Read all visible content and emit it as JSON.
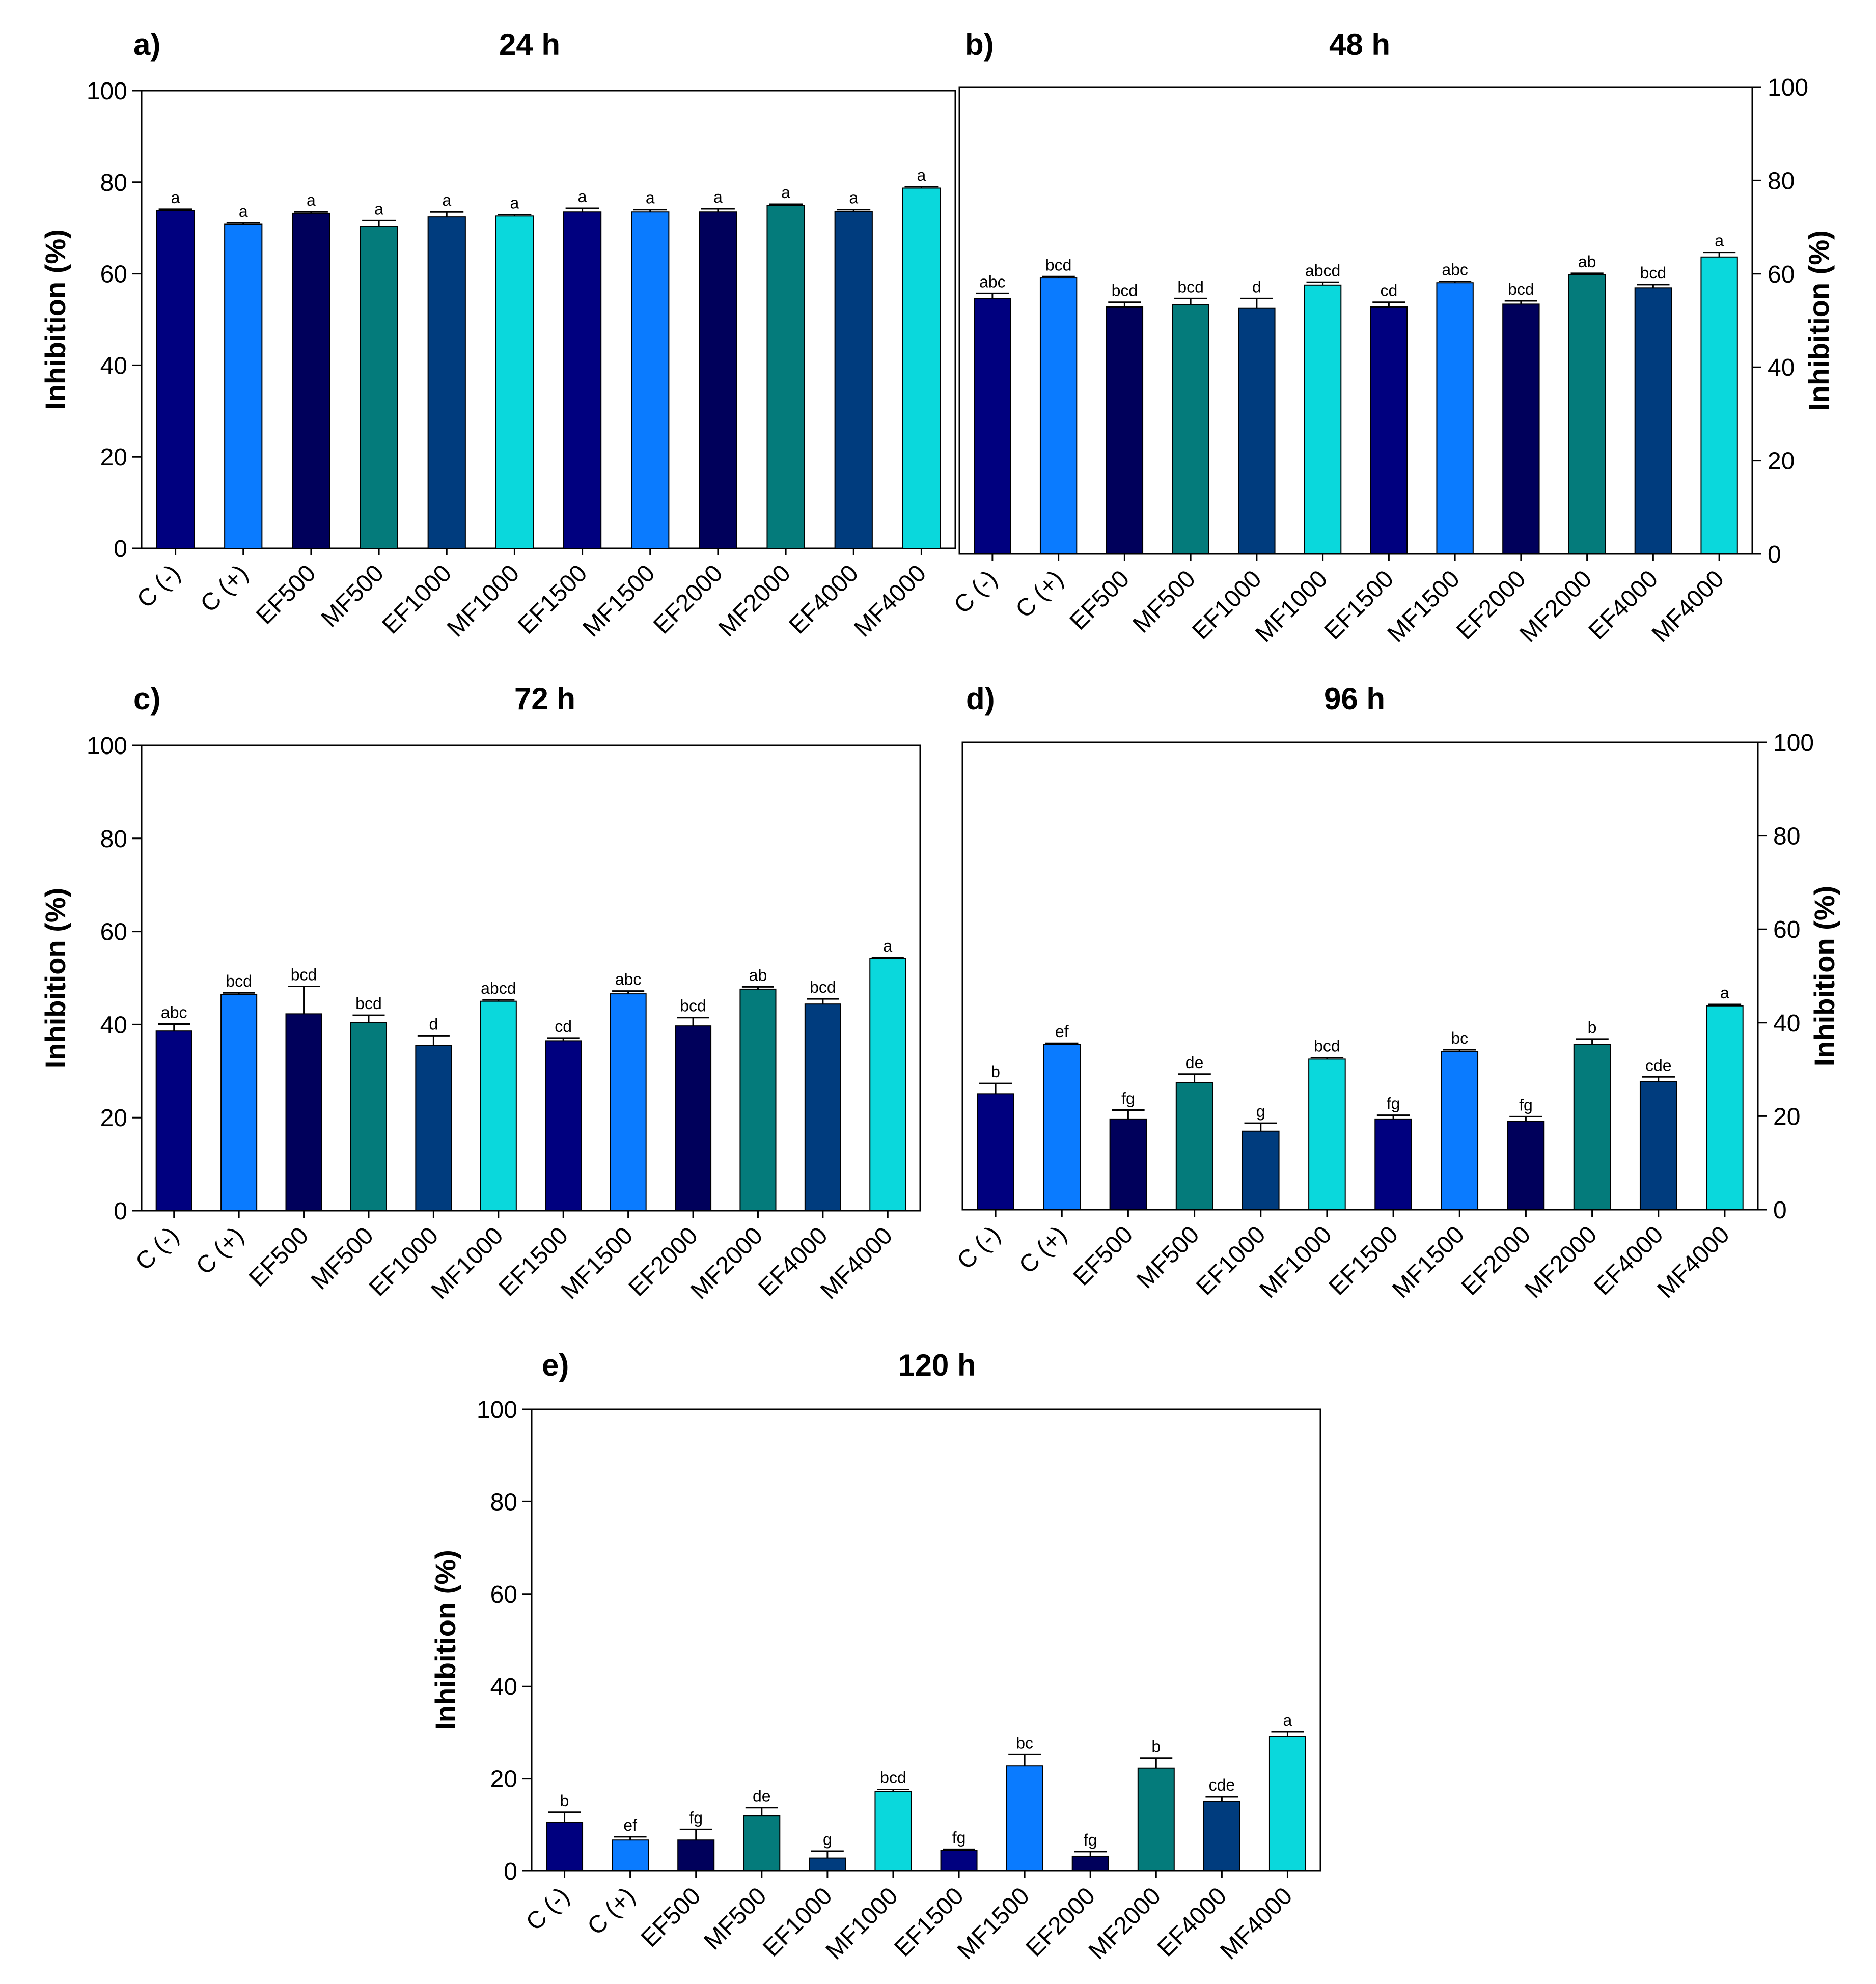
{
  "chart_data": [
    {
      "type": "bar",
      "panel": "a)",
      "title": "24 h",
      "ylabel": "Inhibition (%)",
      "yaxis_side": "left",
      "ylim": [
        0,
        100
      ],
      "yticks": [
        0,
        20,
        40,
        60,
        80,
        100
      ],
      "categories": [
        "C (-)",
        "C (+)",
        "EF500",
        "MF500",
        "EF1000",
        "MF1000",
        "EF1500",
        "MF1500",
        "EF2000",
        "MF2000",
        "EF4000",
        "MF4000"
      ],
      "values": [
        73.8,
        70.8,
        73.2,
        70.4,
        72.4,
        72.6,
        73.5,
        73.5,
        73.5,
        74.9,
        73.6,
        78.7
      ],
      "errors": [
        0.3,
        0.3,
        0.3,
        1.2,
        1.1,
        0.3,
        0.8,
        0.5,
        0.7,
        0.3,
        0.4,
        0.3
      ],
      "labels": [
        "a",
        "a",
        "a",
        "a",
        "a",
        "a",
        "a",
        "a",
        "a",
        "a",
        "a",
        "a"
      ]
    },
    {
      "type": "bar",
      "panel": "b)",
      "title": "48 h",
      "ylabel": "Inhibition (%)",
      "yaxis_side": "right",
      "ylim": [
        0,
        100
      ],
      "yticks": [
        0,
        20,
        40,
        60,
        80,
        100
      ],
      "categories": [
        "C (-)",
        "C (+)",
        "EF500",
        "MF500",
        "EF1000",
        "MF1000",
        "EF1500",
        "MF1500",
        "EF2000",
        "MF2000",
        "EF4000",
        "MF4000"
      ],
      "values": [
        54.7,
        59.1,
        52.9,
        53.4,
        52.7,
        57.6,
        52.9,
        58.1,
        53.5,
        59.8,
        57.0,
        63.6
      ],
      "errors": [
        1.1,
        0.3,
        1.0,
        1.3,
        2.0,
        0.6,
        1.0,
        0.3,
        0.7,
        0.3,
        0.7,
        1.0
      ],
      "labels": [
        "abc",
        "bcd",
        "bcd",
        "bcd",
        "d",
        "abcd",
        "cd",
        "abc",
        "bcd",
        "ab",
        "bcd",
        "a"
      ]
    },
    {
      "type": "bar",
      "panel": "c)",
      "title": "72 h",
      "ylabel": "Inhibition (%)",
      "yaxis_side": "left",
      "ylim": [
        0,
        100
      ],
      "yticks": [
        0,
        20,
        40,
        60,
        80,
        100
      ],
      "categories": [
        "C (-)",
        "C (+)",
        "EF500",
        "MF500",
        "EF1000",
        "MF1000",
        "EF1500",
        "MF1500",
        "EF2000",
        "MF2000",
        "EF4000",
        "MF4000"
      ],
      "values": [
        38.6,
        46.5,
        42.3,
        40.4,
        35.5,
        45.0,
        36.5,
        46.6,
        39.7,
        47.6,
        44.4,
        54.2
      ],
      "errors": [
        1.5,
        0.3,
        5.9,
        1.6,
        2.1,
        0.3,
        0.6,
        0.6,
        1.8,
        0.5,
        1.1,
        0.2
      ],
      "labels": [
        "abc",
        "bcd",
        "bcd",
        "bcd",
        "d",
        "abcd",
        "cd",
        "abc",
        "bcd",
        "ab",
        "bcd",
        "a"
      ]
    },
    {
      "type": "bar",
      "panel": "d)",
      "title": "96 h",
      "ylabel": "Inhibition (%)",
      "yaxis_side": "right",
      "ylim": [
        0,
        100
      ],
      "yticks": [
        0,
        20,
        40,
        60,
        80,
        100
      ],
      "categories": [
        "C (-)",
        "C (+)",
        "EF500",
        "MF500",
        "EF1000",
        "MF1000",
        "EF1500",
        "MF1500",
        "EF2000",
        "MF2000",
        "EF4000",
        "MF4000"
      ],
      "values": [
        24.8,
        35.3,
        19.4,
        27.2,
        16.8,
        32.2,
        19.4,
        33.8,
        18.9,
        35.3,
        27.4,
        43.6
      ],
      "errors": [
        2.2,
        0.3,
        1.9,
        1.8,
        1.7,
        0.3,
        0.8,
        0.4,
        1.0,
        1.2,
        1.0,
        0.3
      ],
      "labels": [
        "b",
        "ef",
        "fg",
        "de",
        "g",
        "bcd",
        "fg",
        "bc",
        "fg",
        "b",
        "cde",
        "a"
      ]
    },
    {
      "type": "bar",
      "panel": "e)",
      "title": "120 h",
      "ylabel": "Inhibition (%)",
      "yaxis_side": "left",
      "ylim": [
        0,
        100
      ],
      "yticks": [
        0,
        20,
        40,
        60,
        80,
        100
      ],
      "categories": [
        "C (-)",
        "C (+)",
        "EF500",
        "MF500",
        "EF1000",
        "MF1000",
        "EF1500",
        "MF1500",
        "EF2000",
        "MF2000",
        "EF4000",
        "MF4000"
      ],
      "values": [
        10.5,
        6.7,
        6.7,
        12.0,
        2.8,
        17.2,
        4.5,
        22.8,
        3.2,
        22.3,
        15.0,
        29.2
      ],
      "errors": [
        2.2,
        0.7,
        2.3,
        1.7,
        1.5,
        0.5,
        0.2,
        2.4,
        1.0,
        2.1,
        1.1,
        0.9
      ],
      "labels": [
        "b",
        "ef",
        "fg",
        "de",
        "g",
        "bcd",
        "fg",
        "bc",
        "fg",
        "b",
        "cde",
        "a"
      ]
    }
  ],
  "colors": [
    "#00007f",
    "#0a7bff",
    "#00005b",
    "#047b7b",
    "#003c7e",
    "#0ad8dc",
    "#00007f",
    "#0a7bff",
    "#00005b",
    "#047b7b",
    "#003c7e",
    "#0ad8dc"
  ]
}
